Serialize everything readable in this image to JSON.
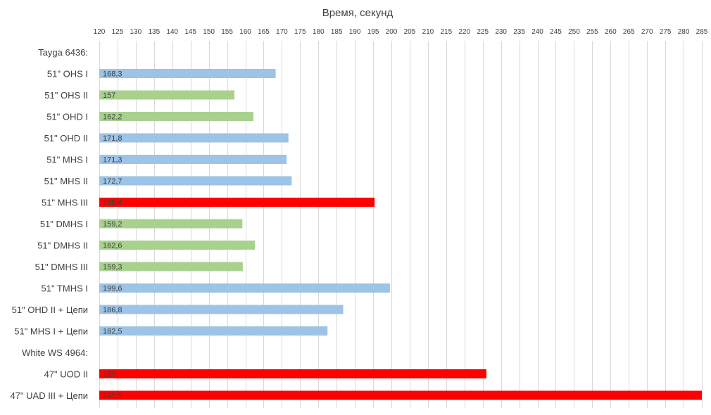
{
  "chart_data": {
    "type": "bar",
    "orientation": "horizontal",
    "title": "",
    "xlabel": "Время, секунд",
    "ylabel": "",
    "xlim": [
      120,
      285
    ],
    "x_tick_step": 5,
    "x_axis_position": "top",
    "grid": true,
    "legend": "none",
    "categories": [
      "Tayga 6436:",
      "51\" OHS I",
      "51\" OHS II",
      "51\" OHD I",
      "51\" OHD II",
      "51\" MHS I",
      "51\" MHS II",
      "51\" MHS III",
      "51\" DMHS I",
      "51\" DMHS II",
      "51\" DMHS III",
      "51\" TMHS I",
      "51\" OHD II + Цепи",
      "51\" MHS I + Цепи",
      "White WS 4964:",
      "47\" UOD II",
      "47\" UAD III + Цепи"
    ],
    "values": [
      null,
      168.3,
      157,
      162.2,
      171.8,
      171.3,
      172.7,
      195.4,
      159.2,
      162.6,
      159.3,
      199.6,
      186.8,
      182.5,
      null,
      226,
      285.5
    ],
    "data_labels": [
      "",
      "168,3",
      "157",
      "162,2",
      "171,8",
      "171,3",
      "172,7",
      "195,4",
      "159,2",
      "162,6",
      "159,3",
      "199,6",
      "186,8",
      "182,5",
      "",
      "226",
      "285,5"
    ],
    "bar_colors": [
      "",
      "#9dc3e6",
      "#a9d18e",
      "#a9d18e",
      "#9dc3e6",
      "#9dc3e6",
      "#9dc3e6",
      "#ff0000",
      "#a9d18e",
      "#a9d18e",
      "#a9d18e",
      "#9dc3e6",
      "#9dc3e6",
      "#9dc3e6",
      "",
      "#ff0000",
      "#ff0000"
    ],
    "gridline_color": "#d9d9d9",
    "text_color": "#404040"
  }
}
